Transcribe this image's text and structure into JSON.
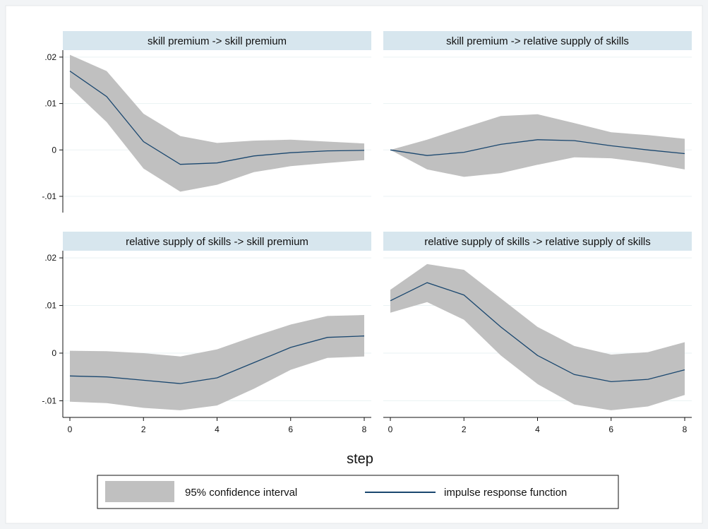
{
  "colors": {
    "strip": "#d7e6ee",
    "band": "#c0c0c0",
    "line": "#1a476f",
    "grid": "#eaf2f3",
    "background": "#ffffff",
    "outer": "#f2f4f6"
  },
  "chart_data": {
    "type": "line",
    "layout": "2x2 small multiples",
    "xlabel": "step",
    "x_ticks": [
      "0",
      "2",
      "4",
      "6",
      "8"
    ],
    "y_ticks": [
      ".02",
      ".01",
      "0",
      "-.01"
    ],
    "xlim": [
      0,
      8
    ],
    "ylim": [
      -0.0135,
      0.0215
    ],
    "grid": "horizontal",
    "legend_position": "bottom",
    "legend": {
      "band_label": "95% confidence interval",
      "line_label": "impulse response function"
    },
    "panels": [
      {
        "title": "skill premium -> skill premium",
        "x": [
          0,
          1,
          2,
          3,
          4,
          5,
          6,
          7,
          8
        ],
        "irf": [
          0.017,
          0.0115,
          0.0018,
          -0.0031,
          -0.0028,
          -0.0013,
          -0.0006,
          -0.0002,
          -0.0001
        ],
        "lower": [
          0.0135,
          0.006,
          -0.004,
          -0.009,
          -0.0075,
          -0.0048,
          -0.0035,
          -0.0028,
          -0.0022
        ],
        "upper": [
          0.0205,
          0.017,
          0.0078,
          0.003,
          0.0015,
          0.002,
          0.0022,
          0.0018,
          0.0014
        ]
      },
      {
        "title": "skill premium -> relative supply of skills",
        "x": [
          0,
          1,
          2,
          3,
          4,
          5,
          6,
          7,
          8
        ],
        "irf": [
          0,
          -0.0012,
          -0.0005,
          0.0012,
          0.0022,
          0.002,
          0.0009,
          0.0,
          -0.0008
        ],
        "lower": [
          0,
          -0.0042,
          -0.0058,
          -0.005,
          -0.0032,
          -0.0016,
          -0.0018,
          -0.0028,
          -0.0042
        ],
        "upper": [
          0,
          0.0022,
          0.0048,
          0.0073,
          0.0077,
          0.0058,
          0.0038,
          0.0032,
          0.0024
        ]
      },
      {
        "title": "relative supply of skills -> skill premium",
        "x": [
          0,
          1,
          2,
          3,
          4,
          5,
          6,
          7,
          8
        ],
        "irf": [
          -0.0048,
          -0.005,
          -0.0057,
          -0.0064,
          -0.0052,
          -0.002,
          0.0012,
          0.0033,
          0.0036
        ],
        "lower": [
          -0.0102,
          -0.0105,
          -0.0115,
          -0.012,
          -0.011,
          -0.0075,
          -0.0035,
          -0.001,
          -0.0007
        ],
        "upper": [
          0.0005,
          0.0004,
          0.0,
          -0.0007,
          0.0008,
          0.0035,
          0.006,
          0.0078,
          0.008
        ]
      },
      {
        "title": "relative supply of skills -> relative supply of skills",
        "x": [
          0,
          1,
          2,
          3,
          4,
          5,
          6,
          7,
          8
        ],
        "irf": [
          0.011,
          0.0148,
          0.0122,
          0.0055,
          -0.0005,
          -0.0045,
          -0.006,
          -0.0055,
          -0.0035
        ],
        "lower": [
          0.0085,
          0.0107,
          0.007,
          -0.0005,
          -0.0065,
          -0.0108,
          -0.012,
          -0.0112,
          -0.0088
        ],
        "upper": [
          0.0133,
          0.0187,
          0.0175,
          0.0115,
          0.0055,
          0.0015,
          -0.0003,
          0.0002,
          0.0023
        ]
      }
    ]
  }
}
